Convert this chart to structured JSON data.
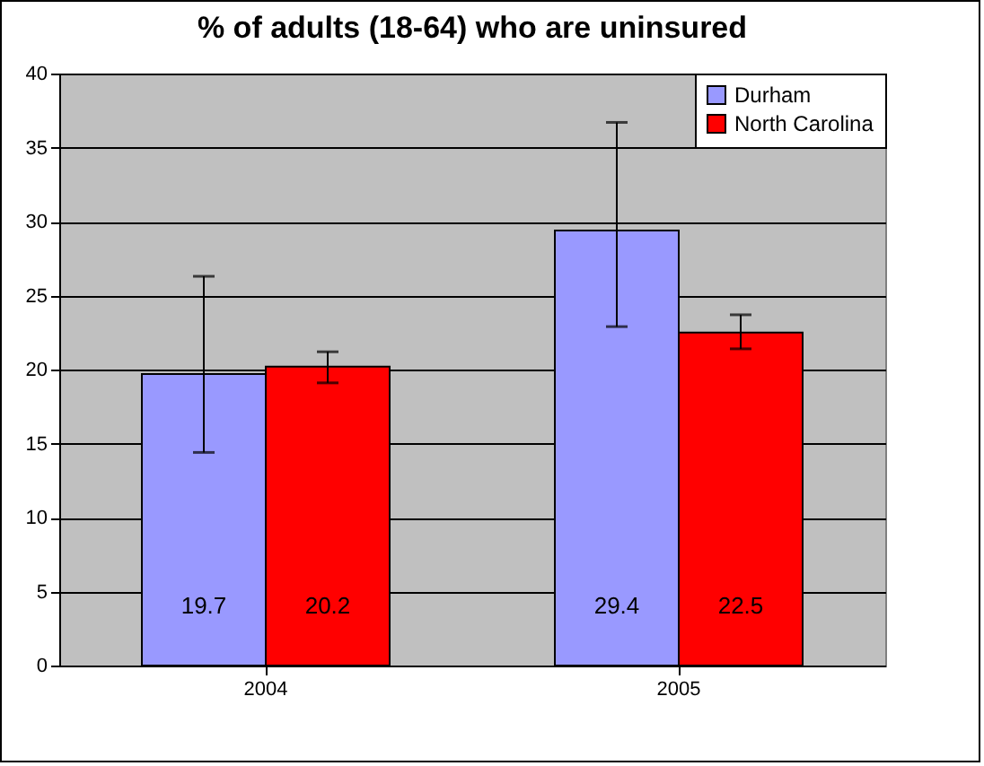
{
  "chart_data": {
    "type": "bar",
    "title": "% of adults (18-64) who are uninsured",
    "categories": [
      "2004",
      "2005"
    ],
    "series": [
      {
        "name": "Durham",
        "color": "#9999ff",
        "values": [
          19.7,
          29.4
        ],
        "errors": [
          [
            14.4,
            26.3
          ],
          [
            22.9,
            36.7
          ]
        ]
      },
      {
        "name": "North Carolina",
        "color": "#ff0000",
        "values": [
          20.2,
          22.5
        ],
        "errors": [
          [
            19.1,
            21.2
          ],
          [
            21.4,
            23.7
          ]
        ]
      }
    ],
    "ylim": [
      0,
      40
    ],
    "yticks": [
      0,
      5,
      10,
      15,
      20,
      25,
      30,
      35,
      40
    ],
    "grid": "y",
    "legend": "top right",
    "data_labels": true
  }
}
